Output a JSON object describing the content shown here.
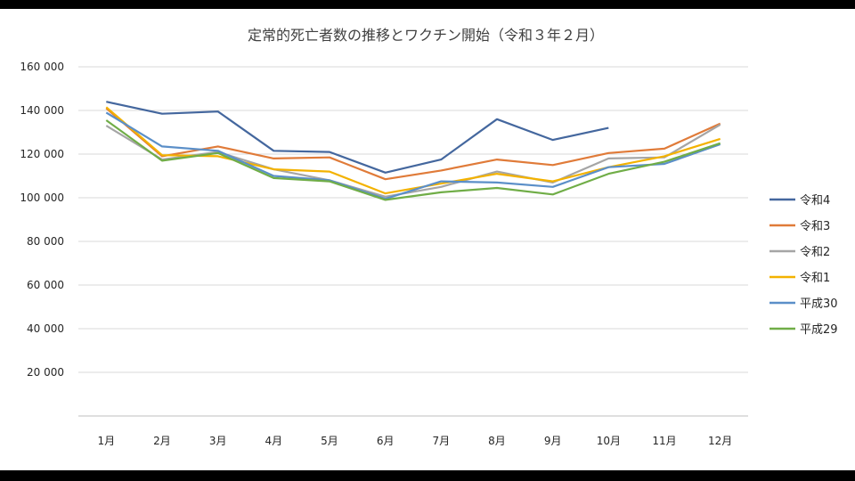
{
  "chart_data": {
    "type": "line",
    "title": "定常的死亡者数の推移とワクチン開始（令和３年２月）",
    "categories": [
      "1月",
      "2月",
      "3月",
      "4月",
      "5月",
      "6月",
      "7月",
      "8月",
      "9月",
      "10月",
      "11月",
      "12月"
    ],
    "y_ticks": [
      "20 000",
      "40 000",
      "60 000",
      "80 000",
      "100 000",
      "120 000",
      "140 000",
      "160 000"
    ],
    "ylim": [
      0,
      160000
    ],
    "grid": true,
    "legend_position": "right",
    "series": [
      {
        "name": "令和4",
        "color": "#44679e",
        "values": [
          144000,
          138500,
          139500,
          121500,
          121000,
          111500,
          117500,
          136000,
          126500,
          132000,
          null,
          null
        ]
      },
      {
        "name": "令和3",
        "color": "#e07b39",
        "values": [
          141000,
          119000,
          123500,
          118000,
          118500,
          108500,
          112500,
          117500,
          115000,
          120500,
          122500,
          134000
        ]
      },
      {
        "name": "令和2",
        "color": "#a5a5a5",
        "values": [
          133000,
          117500,
          121000,
          113000,
          108000,
          100500,
          105000,
          112000,
          107000,
          118000,
          118500,
          133500
        ]
      },
      {
        "name": "令和1",
        "color": "#f3b200",
        "values": [
          141500,
          119500,
          119000,
          113000,
          112000,
          102000,
          106500,
          111000,
          107500,
          114000,
          119000,
          127000
        ]
      },
      {
        "name": "平成30",
        "color": "#5b8fc8",
        "values": [
          139000,
          123500,
          121500,
          110000,
          108000,
          99500,
          107500,
          107000,
          105000,
          114000,
          115500,
          124500
        ]
      },
      {
        "name": "平成29",
        "color": "#70ad47",
        "values": [
          135500,
          117000,
          120500,
          109000,
          107500,
          99000,
          102500,
          104500,
          101500,
          111000,
          116500,
          125000
        ]
      }
    ]
  }
}
